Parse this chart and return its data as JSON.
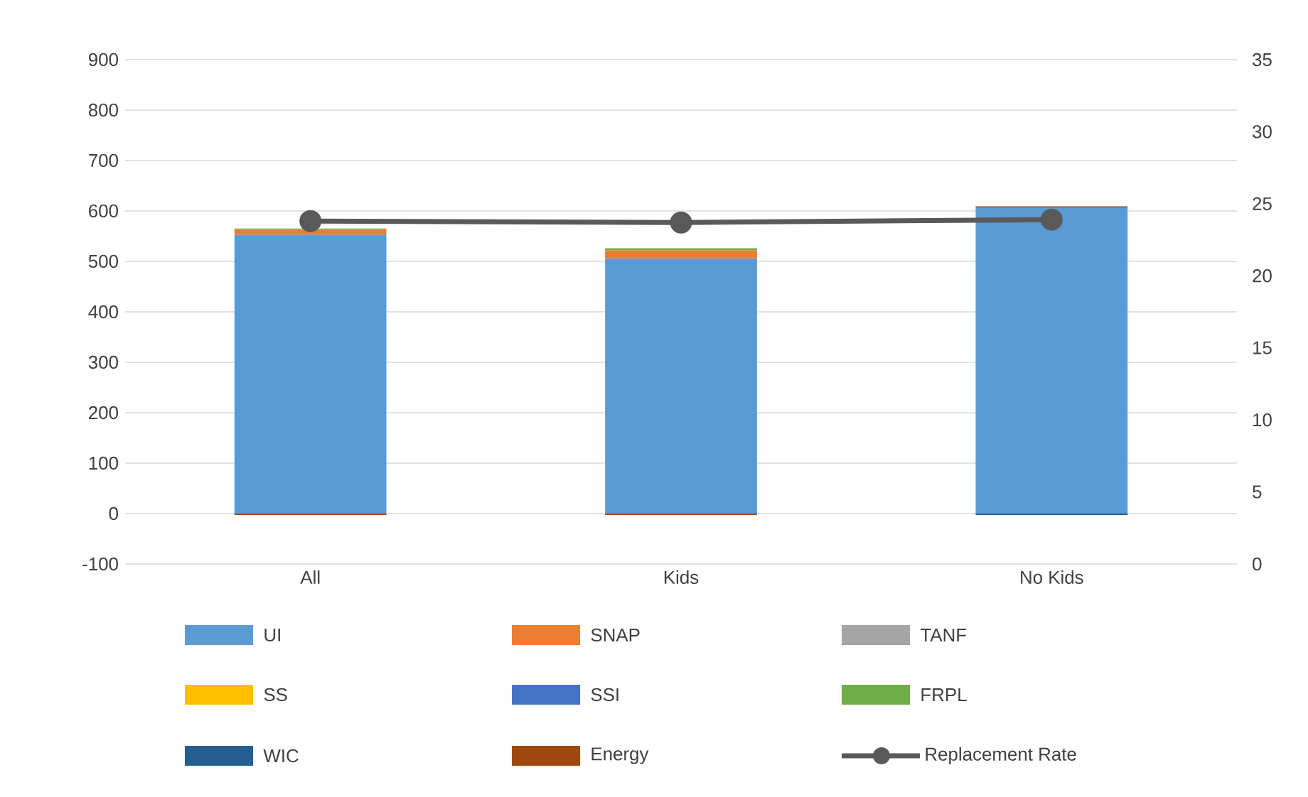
{
  "chart_data": {
    "type": "bar",
    "stacked": true,
    "categories": [
      "All",
      "Kids",
      "No Kids"
    ],
    "series": [
      {
        "name": "UI",
        "color": "#5b9bd5",
        "values": [
          553,
          506,
          607
        ]
      },
      {
        "name": "SNAP",
        "color": "#ed7d31",
        "values": [
          10,
          16,
          0
        ]
      },
      {
        "name": "TANF",
        "color": "#a5a5a5",
        "values": [
          null,
          null,
          0
        ]
      },
      {
        "name": "SS",
        "color": "#ffc000",
        "values": [
          0,
          0,
          0
        ]
      },
      {
        "name": "SSI",
        "color": "#4472c4",
        "values": [
          0,
          0,
          0
        ]
      },
      {
        "name": "FRPL",
        "color": "#70ad47",
        "values": [
          2,
          4,
          0
        ]
      },
      {
        "name": "WIC",
        "color": "#255e91",
        "values": [
          0,
          0,
          -3
        ]
      },
      {
        "name": "Energy",
        "color": "#9e480e",
        "values": [
          -3,
          -3,
          2
        ]
      },
      {
        "name": "Replacement Rate",
        "type": "line",
        "axis": "y2",
        "color": "#595959",
        "marker": "circle",
        "values": [
          23.8,
          23.7,
          23.9
        ]
      }
    ],
    "ylim": [
      -100,
      900
    ],
    "yticks": [
      -100,
      0,
      100,
      200,
      300,
      400,
      500,
      600,
      700,
      800,
      900
    ],
    "y2lim": [
      0,
      35
    ],
    "y2ticks": [
      0,
      5,
      10,
      15,
      20,
      25,
      30,
      35
    ],
    "grid": "y",
    "legend": "bottom"
  }
}
